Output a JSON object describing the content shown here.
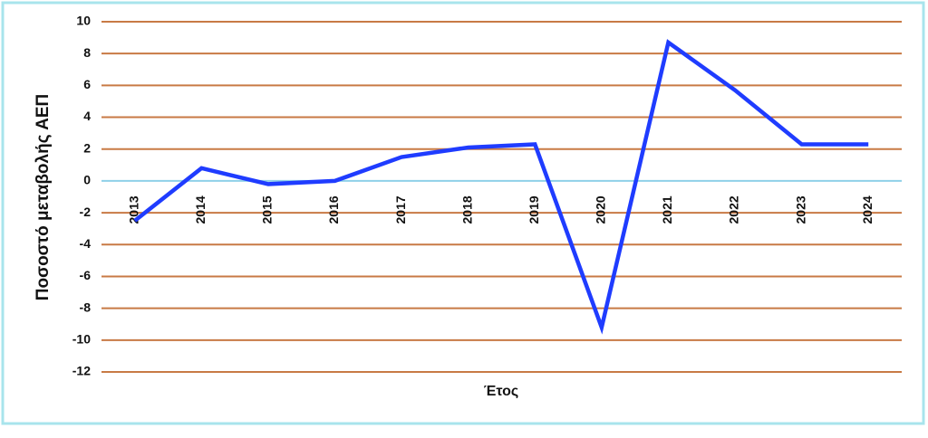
{
  "chart_data": {
    "type": "line",
    "x_label": "Έτος",
    "y_label": "Ποσοστό μεταβολής ΑΕΠ",
    "categories": [
      "2013",
      "2014",
      "2015",
      "2016",
      "2017",
      "2018",
      "2019",
      "2020",
      "2021",
      "2022",
      "2023",
      "2024"
    ],
    "series": [
      {
        "name": "Ποσοστό μεταβολής ΑΕΠ",
        "color": "#1f3cff",
        "values": [
          -2.5,
          0.8,
          -0.2,
          0,
          1.5,
          2.1,
          2.3,
          -9.2,
          8.7,
          5.7,
          2.3,
          2.3
        ]
      }
    ],
    "ylim": [
      -12,
      10
    ],
    "yticks": [
      10,
      8,
      6,
      4,
      2,
      0,
      -2,
      -4,
      -6,
      -8,
      -10,
      -12
    ],
    "grid": true,
    "grid_color": "#c87a45",
    "axis_color": "#8fd0e8",
    "legend": false
  }
}
